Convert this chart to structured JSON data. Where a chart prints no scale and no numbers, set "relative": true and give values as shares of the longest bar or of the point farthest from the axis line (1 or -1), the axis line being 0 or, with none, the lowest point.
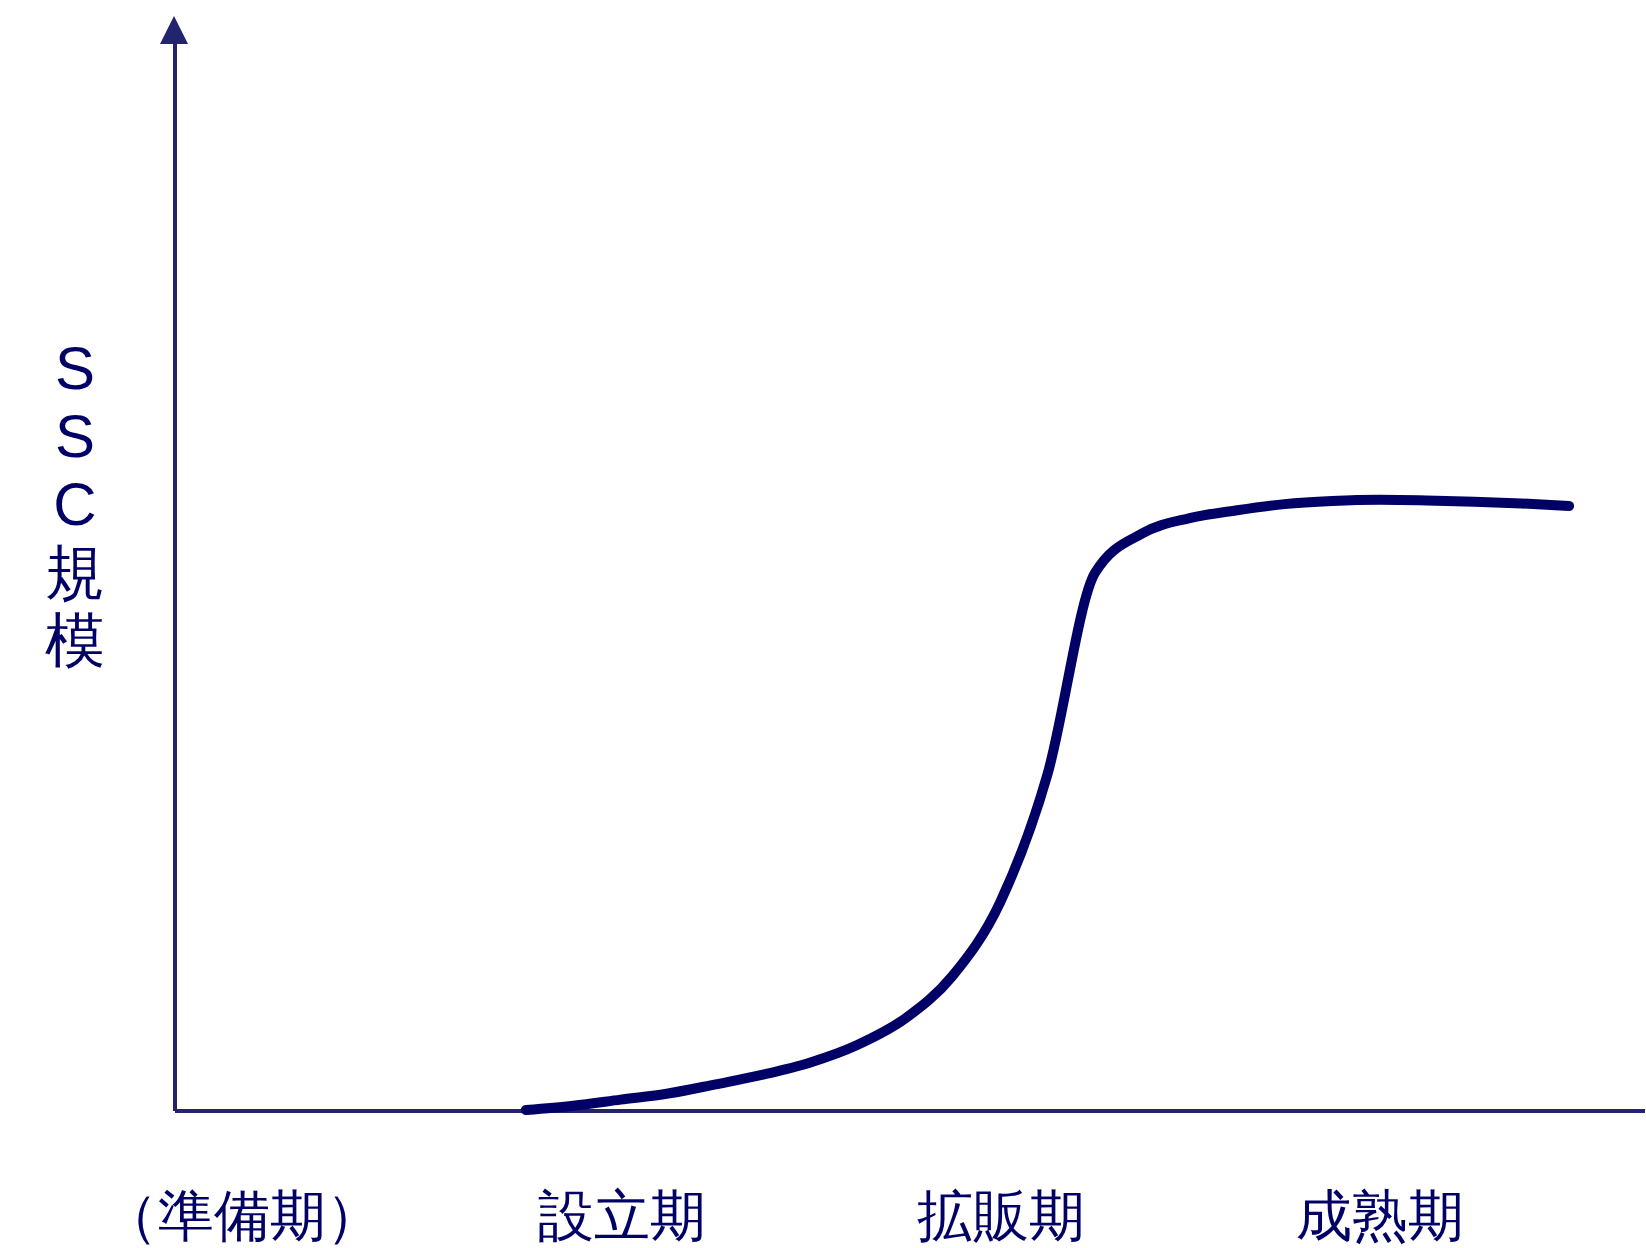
{
  "chart_data": {
    "type": "line",
    "relative": true,
    "ylabel": "SSC規模",
    "categories": [
      "（準備期）",
      null,
      null,
      null,
      null,
      null,
      null,
      null,
      "設立期",
      null,
      null,
      null,
      null,
      null,
      null,
      null,
      "拡販期",
      null,
      null,
      null,
      null,
      null,
      null,
      null,
      "成熟期",
      null,
      null,
      null,
      null,
      null
    ],
    "series": [
      {
        "color": "#000066",
        "values": [
          null,
          null,
          null,
          null,
          null,
          null,
          0,
          0.007,
          0.017,
          0.027,
          0.042,
          0.058,
          0.078,
          0.107,
          0.15,
          0.22,
          0.34,
          0.55,
          0.88,
          0.945,
          0.97,
          0.983,
          0.993,
          0.998,
          1,
          0.999,
          0.997,
          0.994,
          0.99,
          null
        ]
      }
    ],
    "line_style": "solid"
  }
}
